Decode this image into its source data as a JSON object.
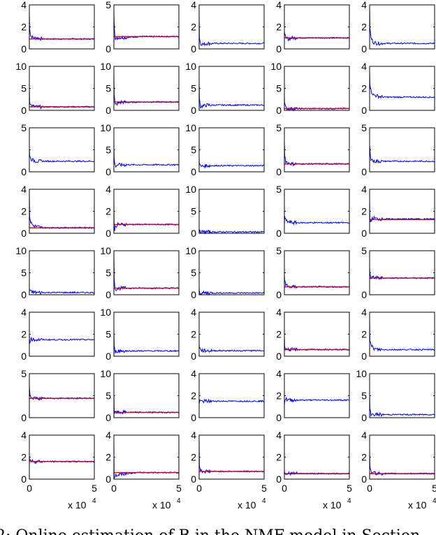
{
  "chart_data": {
    "type": "line",
    "layout": {
      "rows": 8,
      "cols": 5
    },
    "xlim": [
      0,
      5
    ],
    "x_ticks": [
      "0",
      "5"
    ],
    "x_multiplier_label": "x 10",
    "x_multiplier_exp": "4",
    "x": [
      0,
      0.02,
      0.1,
      0.3,
      0.6,
      1,
      2,
      3,
      4,
      5
    ],
    "series_colors": {
      "estimate": "#0000ff",
      "true_value": "#ff0000"
    },
    "panels": [
      {
        "ylim": [
          0,
          4
        ],
        "yticks": [
          "0",
          "2",
          "4"
        ],
        "estimate": [
          3.2,
          2.0,
          1.2,
          1.0,
          1.0,
          0.9,
          0.9,
          0.9,
          0.9,
          0.9
        ],
        "true_value": 0.9
      },
      {
        "ylim": [
          0,
          5
        ],
        "yticks": [
          "0",
          "",
          "5"
        ],
        "estimate": [
          4.5,
          3.0,
          1.0,
          1.3,
          1.3,
          1.3,
          1.4,
          1.4,
          1.4,
          1.4
        ],
        "true_value": 1.4
      },
      {
        "ylim": [
          0,
          4
        ],
        "yticks": [
          "0",
          "2",
          "4"
        ],
        "estimate": [
          3.3,
          1.0,
          0.5,
          0.4,
          0.5,
          0.5,
          0.5,
          0.5,
          0.5,
          0.5
        ],
        "true_value": null
      },
      {
        "ylim": [
          0,
          4
        ],
        "yticks": [
          "0",
          "2",
          "4"
        ],
        "estimate": [
          1.8,
          1.3,
          1.0,
          0.9,
          1.0,
          1.0,
          1.0,
          1.0,
          1.0,
          1.0
        ],
        "true_value": 1.0
      },
      {
        "ylim": [
          0,
          4
        ],
        "yticks": [
          "0",
          "2",
          "4"
        ],
        "estimate": [
          3.8,
          2.0,
          1.0,
          0.6,
          0.5,
          0.5,
          0.5,
          0.5,
          0.5,
          0.5
        ],
        "true_value": null
      },
      {
        "ylim": [
          0,
          10
        ],
        "yticks": [
          "0",
          "5",
          "10"
        ],
        "estimate": [
          5.2,
          2.2,
          1.2,
          0.9,
          0.8,
          0.8,
          0.8,
          0.8,
          0.8,
          0.8
        ],
        "true_value": 0.8
      },
      {
        "ylim": [
          0,
          10
        ],
        "yticks": [
          "0",
          "5",
          "10"
        ],
        "estimate": [
          8.7,
          3.5,
          1.2,
          1.6,
          1.9,
          1.8,
          1.9,
          1.9,
          1.9,
          1.9
        ],
        "true_value": 1.9
      },
      {
        "ylim": [
          0,
          10
        ],
        "yticks": [
          "0",
          "5",
          "10"
        ],
        "estimate": [
          6.2,
          3.0,
          0.8,
          1.0,
          1.2,
          1.2,
          1.2,
          1.2,
          1.2,
          1.2
        ],
        "true_value": null
      },
      {
        "ylim": [
          0,
          10
        ],
        "yticks": [
          "0",
          "5",
          "10"
        ],
        "estimate": [
          3.5,
          1.5,
          0.6,
          0.4,
          0.4,
          0.4,
          0.4,
          0.4,
          0.4,
          0.4
        ],
        "true_value": 0.4
      },
      {
        "ylim": [
          0,
          4
        ],
        "yticks": [
          "0",
          "2",
          "4"
        ],
        "estimate": [
          3.8,
          2.5,
          1.8,
          1.4,
          1.3,
          1.2,
          1.2,
          1.2,
          1.2,
          1.2
        ],
        "true_value": null
      },
      {
        "ylim": [
          0,
          5
        ],
        "yticks": [
          "0",
          "",
          "5"
        ],
        "estimate": [
          2.5,
          2.0,
          1.5,
          1.3,
          1.2,
          1.2,
          1.2,
          1.2,
          1.2,
          1.2
        ],
        "true_value": null
      },
      {
        "ylim": [
          0,
          10
        ],
        "yticks": [
          "0",
          "5",
          "10"
        ],
        "estimate": [
          6.5,
          3.0,
          1.3,
          1.6,
          1.6,
          1.6,
          1.6,
          1.6,
          1.6,
          1.6
        ],
        "true_value": null
      },
      {
        "ylim": [
          0,
          10
        ],
        "yticks": [
          "0",
          "5",
          "10"
        ],
        "estimate": [
          3.0,
          2.0,
          1.2,
          1.3,
          1.4,
          1.4,
          1.4,
          1.4,
          1.4,
          1.4
        ],
        "true_value": null
      },
      {
        "ylim": [
          0,
          5
        ],
        "yticks": [
          "0",
          "",
          "5"
        ],
        "estimate": [
          3.5,
          2.0,
          1.2,
          1.0,
          0.9,
          0.9,
          0.9,
          0.9,
          0.9,
          0.9
        ],
        "true_value": 0.9
      },
      {
        "ylim": [
          0,
          5
        ],
        "yticks": [
          "0",
          "",
          "5"
        ],
        "estimate": [
          3.0,
          2.5,
          1.5,
          1.2,
          1.2,
          1.2,
          1.2,
          1.2,
          1.2,
          1.2
        ],
        "true_value": null
      },
      {
        "ylim": [
          0,
          4
        ],
        "yticks": [
          "0",
          "2",
          "4"
        ],
        "estimate": [
          3.5,
          1.6,
          1.0,
          0.7,
          0.6,
          0.5,
          0.5,
          0.5,
          0.5,
          0.5
        ],
        "true_value": 0.5
      },
      {
        "ylim": [
          0,
          4
        ],
        "yticks": [
          "0",
          "2",
          "4"
        ],
        "estimate": [
          3.0,
          0.2,
          0.6,
          0.8,
          0.8,
          0.8,
          0.8,
          0.8,
          0.8,
          0.8
        ],
        "true_value": 0.8
      },
      {
        "ylim": [
          0,
          10
        ],
        "yticks": [
          "0",
          "5",
          "10"
        ],
        "estimate": [
          0.6,
          0.4,
          0.3,
          0.3,
          0.3,
          0.3,
          0.3,
          0.3,
          0.3,
          0.3
        ],
        "true_value": null
      },
      {
        "ylim": [
          0,
          5
        ],
        "yticks": [
          "0",
          "",
          "5"
        ],
        "estimate": [
          1.0,
          1.8,
          1.5,
          1.3,
          1.2,
          1.2,
          1.2,
          1.2,
          1.2,
          1.2
        ],
        "true_value": null
      },
      {
        "ylim": [
          0,
          4
        ],
        "yticks": [
          "0",
          "2",
          "4"
        ],
        "estimate": [
          2.8,
          1.0,
          1.2,
          1.4,
          1.3,
          1.3,
          1.3,
          1.3,
          1.3,
          1.3
        ],
        "true_value": 1.25
      },
      {
        "ylim": [
          0,
          10
        ],
        "yticks": [
          "0",
          "5",
          "10"
        ],
        "estimate": [
          1.5,
          1.0,
          0.7,
          0.6,
          0.5,
          0.5,
          0.5,
          0.5,
          0.5,
          0.5
        ],
        "true_value": null
      },
      {
        "ylim": [
          0,
          10
        ],
        "yticks": [
          "0",
          "5",
          "10"
        ],
        "estimate": [
          9.5,
          4.0,
          1.2,
          1.4,
          1.5,
          1.5,
          1.5,
          1.5,
          1.5,
          1.5
        ],
        "true_value": 1.5
      },
      {
        "ylim": [
          0,
          10
        ],
        "yticks": [
          "0",
          "5",
          "10"
        ],
        "estimate": [
          1.5,
          0.6,
          0.4,
          0.4,
          0.4,
          0.4,
          0.4,
          0.4,
          0.4,
          0.4
        ],
        "true_value": null
      },
      {
        "ylim": [
          0,
          5
        ],
        "yticks": [
          "0",
          "",
          "5"
        ],
        "estimate": [
          2.2,
          1.7,
          1.2,
          0.9,
          0.9,
          0.9,
          0.9,
          0.9,
          0.9,
          0.9
        ],
        "true_value": 0.9
      },
      {
        "ylim": [
          0,
          5
        ],
        "yticks": [
          "0",
          "",
          "5"
        ],
        "estimate": [
          3.2,
          2.5,
          1.8,
          2.0,
          1.9,
          1.9,
          1.9,
          1.9,
          1.9,
          1.9
        ],
        "true_value": 1.9
      },
      {
        "ylim": [
          0,
          4
        ],
        "yticks": [
          "0",
          "2",
          "4"
        ],
        "estimate": [
          2.0,
          1.2,
          1.6,
          1.5,
          1.5,
          1.5,
          1.5,
          1.5,
          1.5,
          1.5
        ],
        "true_value": null
      },
      {
        "ylim": [
          0,
          10
        ],
        "yticks": [
          "0",
          "5",
          "10"
        ],
        "estimate": [
          6.5,
          2.0,
          1.0,
          1.2,
          1.2,
          1.2,
          1.2,
          1.2,
          1.2,
          1.2
        ],
        "true_value": null
      },
      {
        "ylim": [
          0,
          4
        ],
        "yticks": [
          "0",
          "2",
          "4"
        ],
        "estimate": [
          1.2,
          0.8,
          0.6,
          0.5,
          0.5,
          0.5,
          0.5,
          0.5,
          0.5,
          0.5
        ],
        "true_value": null
      },
      {
        "ylim": [
          0,
          4
        ],
        "yticks": [
          "0",
          "2",
          "4"
        ],
        "estimate": [
          1.8,
          1.0,
          0.7,
          0.6,
          0.6,
          0.6,
          0.6,
          0.6,
          0.6,
          0.6
        ],
        "true_value": 0.6
      },
      {
        "ylim": [
          0,
          4
        ],
        "yticks": [
          "0",
          "2",
          "4"
        ],
        "estimate": [
          3.5,
          1.5,
          1.0,
          0.7,
          0.6,
          0.6,
          0.6,
          0.6,
          0.6,
          0.6
        ],
        "true_value": null
      },
      {
        "ylim": [
          0,
          5
        ],
        "yticks": [
          "0",
          "",
          "5"
        ],
        "estimate": [
          3.8,
          3.0,
          2.3,
          2.2,
          2.2,
          2.2,
          2.2,
          2.2,
          2.2,
          2.2
        ],
        "true_value": 2.2
      },
      {
        "ylim": [
          0,
          10
        ],
        "yticks": [
          "0",
          "5",
          "10"
        ],
        "estimate": [
          7.0,
          1.0,
          1.2,
          1.2,
          1.2,
          1.2,
          1.2,
          1.2,
          1.2,
          1.2
        ],
        "true_value": 1.2
      },
      {
        "ylim": [
          0,
          4
        ],
        "yticks": [
          "0",
          "2",
          "4"
        ],
        "estimate": [
          1.2,
          1.4,
          1.5,
          1.5,
          1.5,
          1.5,
          1.5,
          1.5,
          1.5,
          1.5
        ],
        "true_value": null
      },
      {
        "ylim": [
          0,
          4
        ],
        "yticks": [
          "0",
          "2",
          "4"
        ],
        "estimate": [
          1.2,
          1.5,
          1.7,
          1.6,
          1.6,
          1.6,
          1.6,
          1.6,
          1.6,
          1.6
        ],
        "true_value": null
      },
      {
        "ylim": [
          0,
          10
        ],
        "yticks": [
          "0",
          "5",
          "10"
        ],
        "estimate": [
          5.5,
          2.0,
          0.8,
          0.7,
          0.7,
          0.7,
          0.7,
          0.7,
          0.7,
          0.7
        ],
        "true_value": null
      },
      {
        "ylim": [
          0,
          4
        ],
        "yticks": [
          "0",
          "2",
          "4"
        ],
        "estimate": [
          2.2,
          1.8,
          1.7,
          1.6,
          1.6,
          1.6,
          1.6,
          1.6,
          1.6,
          1.6
        ],
        "true_value": 1.6
      },
      {
        "ylim": [
          0,
          4
        ],
        "yticks": [
          "0",
          "2",
          "4"
        ],
        "estimate": [
          3.2,
          0.1,
          0.3,
          0.4,
          0.5,
          0.5,
          0.6,
          0.6,
          0.6,
          0.6
        ],
        "true_value": 0.6
      },
      {
        "ylim": [
          0,
          4
        ],
        "yticks": [
          "0",
          "2",
          "4"
        ],
        "estimate": [
          3.4,
          1.3,
          0.8,
          0.7,
          0.7,
          0.7,
          0.7,
          0.7,
          0.7,
          0.7
        ],
        "true_value": 0.7
      },
      {
        "ylim": [
          0,
          4
        ],
        "yticks": [
          "0",
          "2",
          "4"
        ],
        "estimate": [
          0.9,
          0.6,
          0.5,
          0.5,
          0.5,
          0.5,
          0.5,
          0.5,
          0.5,
          0.5
        ],
        "true_value": 0.5
      },
      {
        "ylim": [
          0,
          4
        ],
        "yticks": [
          "0",
          "2",
          "4"
        ],
        "estimate": [
          3.0,
          1.0,
          0.7,
          0.6,
          0.5,
          0.5,
          0.5,
          0.5,
          0.5,
          0.5
        ],
        "true_value": 0.5
      }
    ],
    "caption": "2: Online estimation of B in the NMF model in Section"
  }
}
